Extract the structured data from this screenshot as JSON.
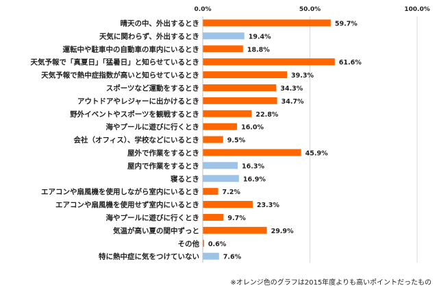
{
  "chart_data": {
    "type": "bar",
    "orientation": "horizontal",
    "xlim": [
      0,
      100
    ],
    "x_ticks": [
      "0.0%",
      "50.0%",
      "100.0%"
    ],
    "grid": true,
    "categories": [
      "晴天の中、外出するとき",
      "天気に関わらず、外出するとき",
      "運転中や駐車中の自動車の車内にいるとき",
      "天気予報で「真夏日」「猛暑日」と知らせているとき",
      "天気予報で熱中症指数が高いと知らせているとき",
      "スポーツなど運動をするとき",
      "アウトドアやレジャーに出かけるとき",
      "野外イベントやスポーツを観戦するとき",
      "海やプールに遊びに行くとき",
      "会社（オフィス）、学校などにいるとき",
      "屋外で作業をするとき",
      "屋内で作業をするとき",
      "寝るとき",
      "エアコンや扇風機を使用しながら室内にいるとき",
      "エアコンや扇風機を使用せず室内にいるとき",
      "海やプールに遊びに行くとき",
      "気温が高い夏の間中ずっと",
      "その他",
      "特に熱中症に気をつけていない"
    ],
    "values": [
      59.7,
      19.4,
      18.8,
      61.6,
      39.3,
      34.3,
      34.7,
      22.8,
      16.0,
      9.5,
      45.9,
      16.3,
      16.9,
      7.2,
      23.3,
      9.7,
      29.9,
      0.6,
      7.6
    ],
    "value_labels": [
      "59.7%",
      "19.4%",
      "18.8%",
      "61.6%",
      "39.3%",
      "34.3%",
      "34.7%",
      "22.8%",
      "16.0%",
      "9.5%",
      "45.9%",
      "16.3%",
      "16.9%",
      "7.2%",
      "23.3%",
      "9.7%",
      "29.9%",
      "0.6%",
      "7.6%"
    ],
    "higher_than_2015": [
      true,
      false,
      true,
      true,
      true,
      true,
      true,
      true,
      true,
      true,
      true,
      false,
      false,
      true,
      true,
      true,
      true,
      true,
      false
    ],
    "colors": {
      "higher": "#FF6600",
      "not_higher": "#9DC3E6",
      "grid": "#D9D9D9"
    },
    "footnote": "※オレンジ色のグラフは2015年度よりも高いポイントだったもの"
  }
}
